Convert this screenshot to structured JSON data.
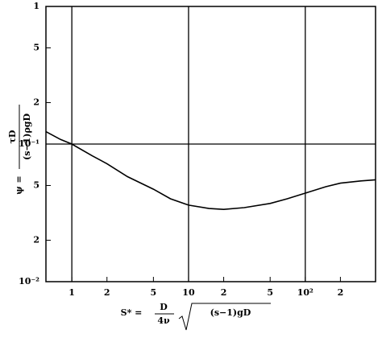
{
  "chart_data": {
    "type": "line",
    "xlabel": {
      "lhs": "S* =",
      "num": "D",
      "den": "4ν",
      "root": "(s−1)gD"
    },
    "ylabel": {
      "lhs": "ψ =",
      "num": "τD",
      "den": "(s−1)ρgD"
    },
    "log_x": true,
    "log_y": true,
    "xlim": [
      0.6,
      400
    ],
    "ylim": [
      0.01,
      1
    ],
    "xticks": [
      1,
      2,
      5,
      10,
      20,
      50,
      {
        "value": 100,
        "label": "10²"
      },
      200
    ],
    "xtick_labels": [
      "1",
      "2",
      "5",
      "10",
      "2",
      "5",
      "10²",
      "2"
    ],
    "yticks": [
      {
        "value": 0.01,
        "label": "10⁻²"
      },
      {
        "value": 0.02,
        "label": "2"
      },
      {
        "value": 0.05,
        "label": "5"
      },
      {
        "value": 0.1,
        "label": "10⁻¹"
      },
      {
        "value": 0.2,
        "label": "2"
      },
      {
        "value": 0.5,
        "label": "5"
      },
      1
    ],
    "xgrid": [
      1,
      10,
      100
    ],
    "ygrid": [
      0.1
    ],
    "color": "#000000",
    "x": [
      0.6,
      0.8,
      1,
      1.5,
      2,
      3,
      5,
      7,
      10,
      15,
      20,
      30,
      50,
      70,
      100,
      150,
      200,
      300,
      400
    ],
    "values": [
      0.123,
      0.108,
      0.1,
      0.082,
      0.072,
      0.058,
      0.047,
      0.04,
      0.036,
      0.034,
      0.0335,
      0.0345,
      0.037,
      0.04,
      0.044,
      0.049,
      0.052,
      0.054,
      0.055
    ]
  }
}
